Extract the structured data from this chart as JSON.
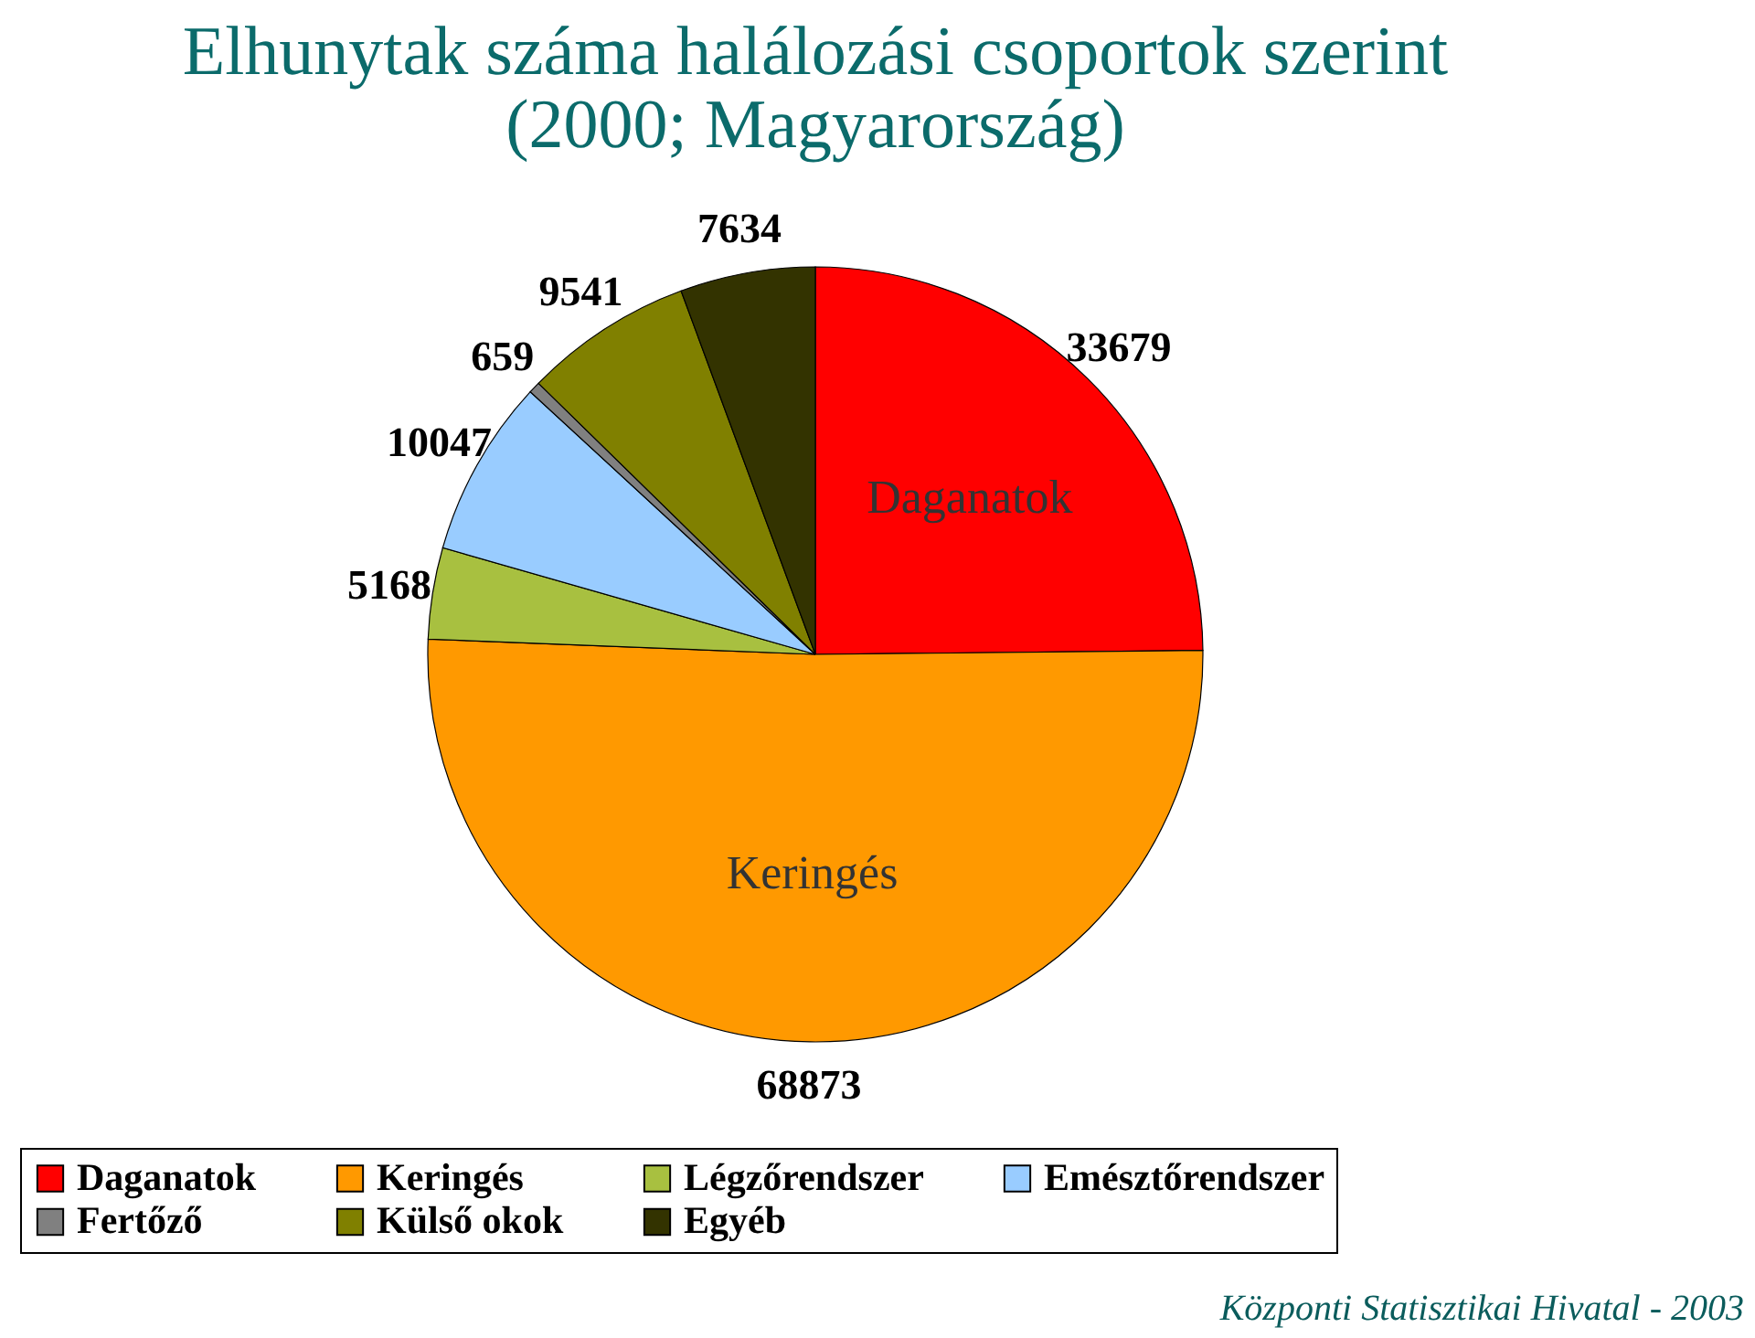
{
  "chart_data": {
    "type": "pie",
    "title": "Elhunytak száma halálozási csoportok szerint\n(2000; Magyarország)",
    "categories": [
      "Daganatok",
      "Keringés",
      "Légzőrendszer",
      "Emésztőrendszer",
      "Fertőző",
      "Külső okok",
      "Egyéb"
    ],
    "values": [
      33679,
      68873,
      5168,
      10047,
      659,
      9541,
      7634
    ],
    "colors": [
      "#ff0000",
      "#ff9900",
      "#a8c040",
      "#99ccff",
      "#808080",
      "#808000",
      "#333300"
    ],
    "data_labels": true,
    "legend": "bottom",
    "annotations": [
      {
        "text": "Daganatok",
        "x": "Daganatok"
      },
      {
        "text": "Keringés",
        "x": "Keringés"
      },
      "Központi Statisztikai Hivatal - 2003"
    ]
  }
}
